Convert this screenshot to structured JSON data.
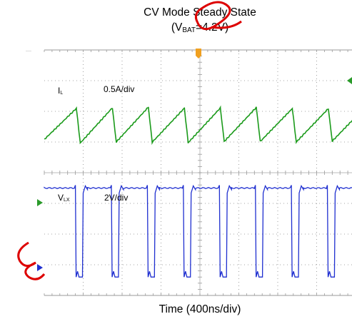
{
  "title_line1": "CV Mode Steady State",
  "title_line2_prefix": "(V",
  "title_line2_sub": "BAT",
  "title_line2_suffix": "=4.2V)",
  "xlabel": "Time (400ns/div)",
  "colors": {
    "il": "#1a9a1a",
    "vlx": "#1f2fd0",
    "grid": "#888888",
    "trigger": "#f0a020",
    "watermark": "#dd0000"
  },
  "chart_data": [
    {
      "type": "line",
      "name_main": "I",
      "name_sub": "L",
      "scale": "0.5A/div",
      "x_unit": "ns",
      "period_ns": 370,
      "peak_div": 2.1,
      "valley_div": 1.0,
      "x": [
        0,
        330,
        370,
        700,
        740,
        1070,
        1110,
        1440,
        1480,
        1810,
        1850,
        2180,
        2220,
        2550,
        2590,
        2920,
        2960,
        3290,
        3330,
        3660,
        3700,
        4000
      ],
      "y_div": [
        1.1,
        2.1,
        1.0,
        2.1,
        1.0,
        2.1,
        1.0,
        2.1,
        1.0,
        2.1,
        1.0,
        2.1,
        1.0,
        2.1,
        1.0,
        2.1,
        1.0,
        2.1,
        1.0,
        2.1,
        1.0,
        1.9
      ]
    },
    {
      "type": "line",
      "name_main": "V",
      "name_sub": "LX",
      "scale": "2V/div",
      "x_unit": "ns",
      "high_div": 2.5,
      "low_div": -0.4,
      "low_intervals_ns": [
        [
          320,
          400
        ],
        [
          690,
          770
        ],
        [
          1060,
          1140
        ],
        [
          1430,
          1510
        ],
        [
          1800,
          1880
        ],
        [
          2170,
          2250
        ],
        [
          2540,
          2620
        ],
        [
          2910,
          2990
        ],
        [
          3280,
          3360
        ],
        [
          3650,
          3730
        ]
      ]
    }
  ]
}
